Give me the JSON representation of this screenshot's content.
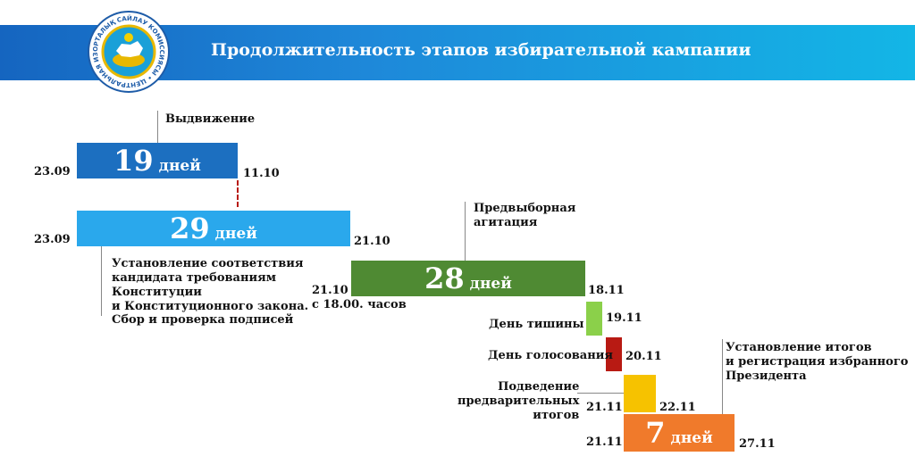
{
  "header": {
    "title": "Продолжительность этапов избирательной кампании"
  },
  "logo": {
    "ring_text": "ОРТАЛЫҚ САЙЛАУ КОМИССИЯСЫ • ЦЕНТРАЛЬНАЯ ИЗБИРАТЕЛЬНАЯ КОМИССИЯ",
    "icon": "emblem-icon"
  },
  "colors": {
    "header_left": "#1565c0",
    "header_right": "#13b6e6",
    "nomination": "#1c6fc0",
    "registration": "#2aa8ec",
    "campaign": "#4f8a33",
    "silence": "#8bd04a",
    "voting": "#b81a13",
    "preliminary": "#f6c200",
    "results": "#f07a2b"
  },
  "stages": {
    "nomination": {
      "label": "Выдвижение",
      "days": "19",
      "unit": "дней",
      "start": "23.09",
      "end": "11.10"
    },
    "registration": {
      "days": "29",
      "unit": "дней",
      "start": "23.09",
      "end": "21.10",
      "desc": [
        "Установление соответствия",
        "кандидата требованиям",
        "Конституции",
        "и Конституционного закона.",
        "Сбор и проверка подписей"
      ]
    },
    "campaign": {
      "label": [
        "Предвыборная",
        "агитация"
      ],
      "days": "28",
      "unit": "дней",
      "start": "21.10",
      "start_note": "с 18.00. часов",
      "end": "18.11"
    },
    "silence": {
      "label": "День тишины",
      "end": "19.11"
    },
    "voting": {
      "label": "День голосования",
      "end": "20.11"
    },
    "preliminary": {
      "label": [
        "Подведение",
        "предварительных",
        "итогов"
      ],
      "start": "21.11",
      "end": "22.11"
    },
    "results": {
      "label": [
        "Установление итогов",
        "и регистрация избранного",
        "Президента"
      ],
      "days": "7",
      "unit": "дней",
      "start": "21.11",
      "end": "27.11"
    }
  }
}
